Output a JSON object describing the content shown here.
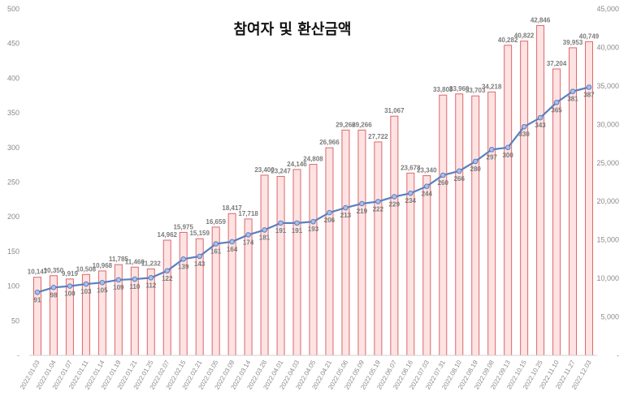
{
  "chart_data": {
    "type": "bar+line",
    "title": "참여자 및 환산금액",
    "categories": [
      "2022.01.03",
      "2022.01.04",
      "2022.01.07",
      "2022.01.11",
      "2022.01.14",
      "2022.01.19",
      "2022.01.21",
      "2022.01.25",
      "2022.02.07",
      "2022.02.15",
      "2022.02.21",
      "2022.03.05",
      "2022.03.09",
      "2022.03.14",
      "2022.03.28",
      "2022.04.01",
      "2022.04.03",
      "2022.04.05",
      "2022.04.21",
      "2022.05.06",
      "2022.05.09",
      "2022.05.19",
      "2022.06.07",
      "2022.06.16",
      "2022.07.03",
      "2022.07.31",
      "2022.08.10",
      "2022.08.19",
      "2022.09.08",
      "2022.09.13",
      "2022.10.15",
      "2022.10.25",
      "2022.11.10",
      "2022.11.27",
      "2022.12.03"
    ],
    "series": [
      {
        "axis": "right",
        "kind": "bar",
        "values": [
          10147,
          10350,
          9919,
          10508,
          10968,
          11785,
          11460,
          11232,
          14962,
          15975,
          15159,
          16659,
          18417,
          17718,
          23400,
          23247,
          24146,
          24808,
          26966,
          29266,
          29266,
          27722,
          31067,
          23678,
          23340,
          33808,
          33960,
          33703,
          34218,
          40282,
          40822,
          42846,
          37204,
          39953,
          40749
        ],
        "labels": [
          "10,147",
          "10,350",
          "9,919",
          "10,508",
          "10,968",
          "11,785",
          "11,460",
          "11,232",
          "14,962",
          "15,975",
          "15,159",
          "16,659",
          "18,417",
          "17,718",
          "23,400",
          "23,247",
          "24,146",
          "24,808",
          "26,966",
          "29,266",
          "29,266",
          "27,722",
          "31,067",
          "23,678",
          "23,340",
          "33,808",
          "33,960",
          "33,703",
          "34,218",
          "40,282",
          "40,822",
          "42,846",
          "37,204",
          "39,953",
          "40,749"
        ],
        "fill": "#fde3e3",
        "stroke": "#e06666"
      },
      {
        "axis": "left",
        "kind": "line",
        "values": [
          91,
          98,
          100,
          103,
          105,
          109,
          110,
          112,
          122,
          139,
          143,
          161,
          164,
          174,
          181,
          191,
          191,
          193,
          206,
          213,
          219,
          222,
          229,
          234,
          244,
          260,
          266,
          280,
          297,
          300,
          330,
          343,
          365,
          381,
          387
        ],
        "labels": [
          "91",
          "98",
          "100",
          "103",
          "105",
          "109",
          "110",
          "112",
          "122",
          "139",
          "143",
          "161",
          "164",
          "174",
          "181",
          "191",
          "191",
          "193",
          "206",
          "213",
          "219",
          "222",
          "229",
          "234",
          "244",
          "260",
          "266",
          "280",
          "297",
          "300",
          "330",
          "343",
          "365",
          "381",
          "387"
        ],
        "stroke": "#5b7fbf",
        "marker": "#a9c0e8"
      }
    ],
    "y_left": {
      "min": 0,
      "max": 500,
      "ticks": [
        "-",
        "50",
        "100",
        "150",
        "200",
        "250",
        "300",
        "350",
        "400",
        "450",
        "500"
      ]
    },
    "y_right": {
      "min": 0,
      "max": 45000,
      "ticks": [
        "-",
        "5,000",
        "10,000",
        "15,000",
        "20,000",
        "25,000",
        "30,000",
        "35,000",
        "40,000",
        "45,000"
      ]
    },
    "grid": false,
    "legend": "none"
  }
}
